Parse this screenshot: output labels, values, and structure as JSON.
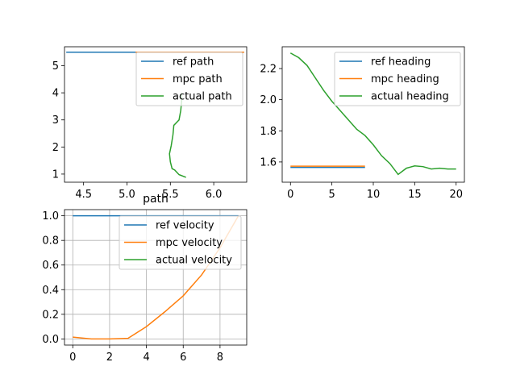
{
  "chart_data": [
    {
      "id": "path",
      "type": "line",
      "title": "",
      "xlim": [
        4.28,
        6.38
      ],
      "ylim": [
        0.7,
        5.7
      ],
      "xticks": [
        4.5,
        5.0,
        5.5,
        6.0
      ],
      "xtick_labels": [
        "4.5",
        "5.0",
        "5.5",
        "6.0"
      ],
      "yticks": [
        1,
        2,
        3,
        4,
        5
      ],
      "ytick_labels": [
        "1",
        "2",
        "3",
        "4",
        "5"
      ],
      "grid": false,
      "legend": "top-right",
      "series": [
        {
          "name": "ref path",
          "color": "#1f77b4",
          "x": [
            4.3,
            6.35
          ],
          "y": [
            5.5,
            5.5
          ]
        },
        {
          "name": "mpc path",
          "color": "#ff7f0e",
          "x": [
            5.1,
            6.35
          ],
          "y": [
            5.5,
            5.5
          ]
        },
        {
          "name": "actual path",
          "color": "#2ca02c",
          "x": [
            5.68,
            5.6,
            5.55,
            5.52,
            5.5,
            5.49,
            5.51,
            5.53,
            5.54,
            5.6,
            5.62,
            5.63,
            5.63
          ],
          "y": [
            0.88,
            0.98,
            1.15,
            1.2,
            1.45,
            1.75,
            2.05,
            2.45,
            2.8,
            3.0,
            3.35,
            3.7,
            4.0
          ]
        }
      ]
    },
    {
      "id": "heading",
      "type": "line",
      "title": "",
      "xlim": [
        -1.0,
        21.0
      ],
      "ylim": [
        1.47,
        2.34
      ],
      "xticks": [
        0,
        5,
        10,
        15,
        20
      ],
      "xtick_labels": [
        "0",
        "5",
        "10",
        "15",
        "20"
      ],
      "yticks": [
        1.6,
        1.8,
        2.0,
        2.2
      ],
      "ytick_labels": [
        "1.6",
        "1.8",
        "2.0",
        "2.2"
      ],
      "grid": false,
      "legend": "top-right",
      "series": [
        {
          "name": "ref heading",
          "color": "#1f77b4",
          "x": [
            0,
            9
          ],
          "y": [
            1.565,
            1.565
          ]
        },
        {
          "name": "mpc heading",
          "color": "#ff7f0e",
          "x": [
            0,
            9
          ],
          "y": [
            1.573,
            1.573
          ]
        },
        {
          "name": "actual heading",
          "color": "#2ca02c",
          "x": [
            0,
            1,
            2,
            3,
            4,
            5,
            6,
            7,
            8,
            9,
            10,
            11,
            12,
            13,
            14,
            15,
            16,
            17,
            18,
            19,
            20
          ],
          "y": [
            2.3,
            2.27,
            2.22,
            2.14,
            2.06,
            1.99,
            1.93,
            1.87,
            1.81,
            1.77,
            1.71,
            1.64,
            1.59,
            1.52,
            1.56,
            1.575,
            1.57,
            1.555,
            1.56,
            1.555,
            1.555
          ]
        }
      ]
    },
    {
      "id": "velocity",
      "type": "line",
      "title": "path",
      "xlim": [
        -0.45,
        9.45
      ],
      "ylim": [
        -0.05,
        1.05
      ],
      "xticks": [
        0,
        2,
        4,
        6,
        8
      ],
      "xtick_labels": [
        "0",
        "2",
        "4",
        "6",
        "8"
      ],
      "yticks": [
        0.0,
        0.2,
        0.4,
        0.6,
        0.8,
        1.0
      ],
      "ytick_labels": [
        "0.0",
        "0.2",
        "0.4",
        "0.6",
        "0.8",
        "1.0"
      ],
      "grid": true,
      "legend": "top-right",
      "series": [
        {
          "name": "ref velocity",
          "color": "#1f77b4",
          "x": [
            0,
            9
          ],
          "y": [
            1.0,
            1.0
          ]
        },
        {
          "name": "mpc velocity",
          "color": "#ff7f0e",
          "x": [
            0,
            1,
            2,
            3,
            4,
            5,
            6,
            7,
            8,
            9
          ],
          "y": [
            0.015,
            0.0,
            0.0,
            0.005,
            0.1,
            0.22,
            0.35,
            0.52,
            0.74,
            1.0
          ]
        },
        {
          "name": "actual velocity",
          "color": "#2ca02c",
          "x": [],
          "y": []
        }
      ]
    }
  ]
}
